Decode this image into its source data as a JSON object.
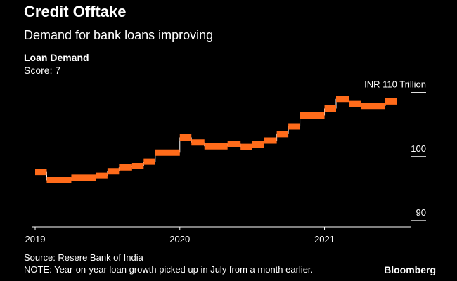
{
  "header": {
    "title": "Credit Offtake",
    "subtitle": "Demand for bank loans improving"
  },
  "series_label": "Loan Demand",
  "score_label": "Score: 7",
  "unit_label": "INR 110  Trillion",
  "footer": {
    "source": "Source: Resere Bank of India",
    "note": "NOTE: Year-on-year loan growth picked up in July from a month earlier.",
    "brand": "Bloomberg"
  },
  "colors": {
    "line": "#ff6b1a",
    "background": "#000000",
    "axis": "#ffffff"
  },
  "chart_data": {
    "type": "line",
    "title": "Loan Demand",
    "ylabel": "INR Trillion",
    "ylim": [
      89,
      111.5
    ],
    "y_ticks": [
      {
        "value": 110,
        "label": "INR 110  Trillion"
      },
      {
        "value": 100,
        "label": "100"
      },
      {
        "value": 90,
        "label": "90"
      }
    ],
    "xlim": [
      2019.0,
      2021.6
    ],
    "x_ticks": [
      {
        "value": 2019.0,
        "label": "2019"
      },
      {
        "value": 2020.0,
        "label": "2020"
      },
      {
        "value": 2021.0,
        "label": "2021"
      }
    ],
    "series": [
      {
        "name": "Loan Demand",
        "points": [
          {
            "x0": 2019.0,
            "x1": 2019.08,
            "y": 97.6
          },
          {
            "x0": 2019.08,
            "x1": 2019.25,
            "y": 96.3
          },
          {
            "x0": 2019.25,
            "x1": 2019.42,
            "y": 96.7
          },
          {
            "x0": 2019.42,
            "x1": 2019.5,
            "y": 97.0
          },
          {
            "x0": 2019.5,
            "x1": 2019.58,
            "y": 97.7
          },
          {
            "x0": 2019.58,
            "x1": 2019.67,
            "y": 98.3
          },
          {
            "x0": 2019.67,
            "x1": 2019.75,
            "y": 98.5
          },
          {
            "x0": 2019.75,
            "x1": 2019.83,
            "y": 99.2
          },
          {
            "x0": 2019.83,
            "x1": 2020.0,
            "y": 100.6
          },
          {
            "x0": 2020.0,
            "x1": 2020.08,
            "y": 103.0
          },
          {
            "x0": 2020.08,
            "x1": 2020.17,
            "y": 102.2
          },
          {
            "x0": 2020.17,
            "x1": 2020.33,
            "y": 101.6
          },
          {
            "x0": 2020.33,
            "x1": 2020.42,
            "y": 102.0
          },
          {
            "x0": 2020.42,
            "x1": 2020.5,
            "y": 101.5
          },
          {
            "x0": 2020.5,
            "x1": 2020.58,
            "y": 101.9
          },
          {
            "x0": 2020.58,
            "x1": 2020.67,
            "y": 102.5
          },
          {
            "x0": 2020.67,
            "x1": 2020.75,
            "y": 103.5
          },
          {
            "x0": 2020.75,
            "x1": 2020.83,
            "y": 104.7
          },
          {
            "x0": 2020.83,
            "x1": 2021.0,
            "y": 106.4
          },
          {
            "x0": 2021.0,
            "x1": 2021.08,
            "y": 107.5
          },
          {
            "x0": 2021.08,
            "x1": 2021.17,
            "y": 109.0
          },
          {
            "x0": 2021.17,
            "x1": 2021.25,
            "y": 108.2
          },
          {
            "x0": 2021.25,
            "x1": 2021.42,
            "y": 107.9
          },
          {
            "x0": 2021.42,
            "x1": 2021.5,
            "y": 108.6
          }
        ]
      }
    ]
  }
}
